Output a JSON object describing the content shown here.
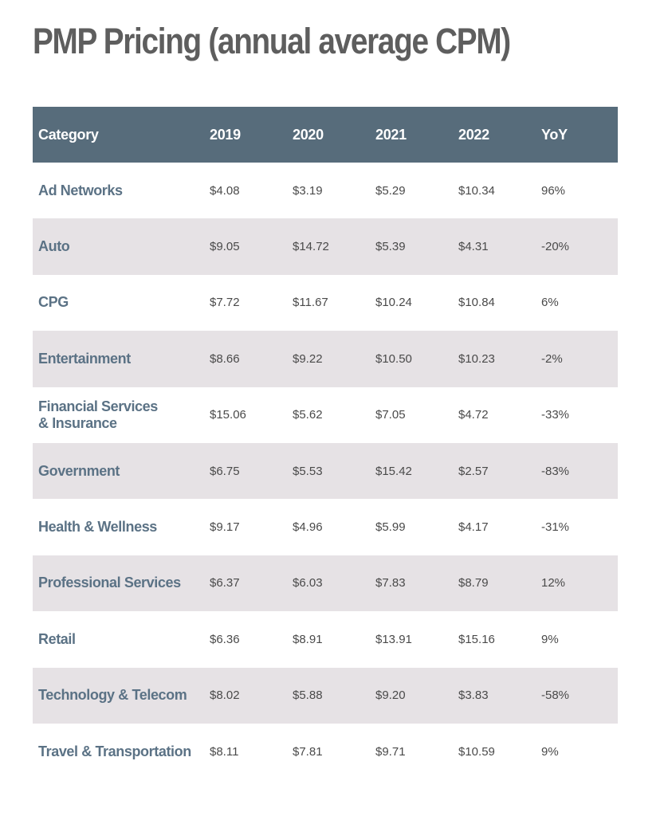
{
  "title": "PMP Pricing (annual average CPM)",
  "table": {
    "headers": [
      "Category",
      "2019",
      "2020",
      "2021",
      "2022",
      "YoY"
    ],
    "rows": [
      {
        "category": "Ad Networks",
        "y2019": "$4.08",
        "y2020": "$3.19",
        "y2021": "$5.29",
        "y2022": "$10.34",
        "yoy": "96%"
      },
      {
        "category": "Auto",
        "y2019": "$9.05",
        "y2020": "$14.72",
        "y2021": "$5.39",
        "y2022": "$4.31",
        "yoy": "-20%"
      },
      {
        "category": "CPG",
        "y2019": "$7.72",
        "y2020": "$11.67",
        "y2021": "$10.24",
        "y2022": "$10.84",
        "yoy": "6%"
      },
      {
        "category": "Entertainment",
        "y2019": "$8.66",
        "y2020": "$9.22",
        "y2021": "$10.50",
        "y2022": "$10.23",
        "yoy": "-2%"
      },
      {
        "category": "Financial Services\n& Insurance",
        "y2019": "$15.06",
        "y2020": "$5.62",
        "y2021": "$7.05",
        "y2022": "$4.72",
        "yoy": "-33%"
      },
      {
        "category": "Government",
        "y2019": "$6.75",
        "y2020": "$5.53",
        "y2021": "$15.42",
        "y2022": "$2.57",
        "yoy": "-83%"
      },
      {
        "category": "Health & Wellness",
        "y2019": "$9.17",
        "y2020": "$4.96",
        "y2021": "$5.99",
        "y2022": "$4.17",
        "yoy": "-31%"
      },
      {
        "category": "Professional Services",
        "y2019": "$6.37",
        "y2020": "$6.03",
        "y2021": "$7.83",
        "y2022": "$8.79",
        "yoy": "12%"
      },
      {
        "category": "Retail",
        "y2019": "$6.36",
        "y2020": "$8.91",
        "y2021": "$13.91",
        "y2022": "$15.16",
        "yoy": "9%"
      },
      {
        "category": "Technology & Telecom",
        "y2019": "$8.02",
        "y2020": "$5.88",
        "y2021": "$9.20",
        "y2022": "$3.83",
        "yoy": "-58%"
      },
      {
        "category": "Travel & Transportation",
        "y2019": "$8.11",
        "y2020": "$7.81",
        "y2021": "$9.71",
        "y2022": "$10.59",
        "yoy": "9%"
      }
    ]
  },
  "colors": {
    "header_bg": "#576c7b",
    "alt_row_bg": "#e6e2e5",
    "category_text": "#5b7285",
    "title_text": "#5e5e5e"
  }
}
